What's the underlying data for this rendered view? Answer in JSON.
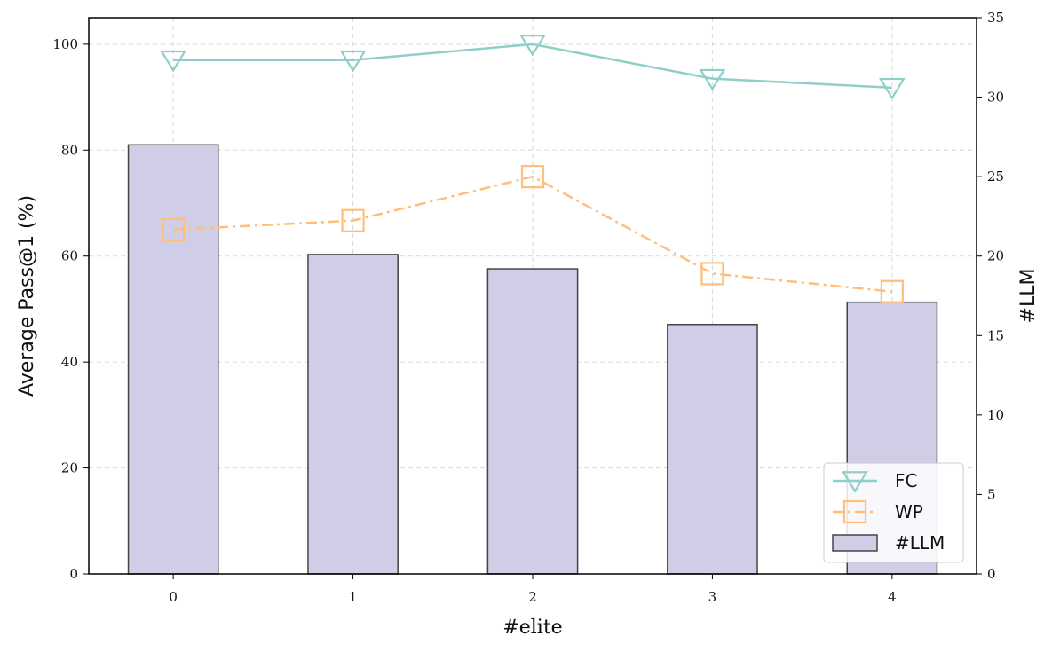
{
  "chart_data": {
    "type": "bar+line",
    "xlabel": "#elite",
    "ylabel_left": "Average Pass@1 (%)",
    "ylabel_right": "#LLM",
    "categories": [
      "0",
      "1",
      "2",
      "3",
      "4"
    ],
    "y_left_lim": [
      0,
      105
    ],
    "y_left_ticks": [
      "0",
      "20",
      "40",
      "60",
      "80",
      "100"
    ],
    "y_right_lim": [
      0,
      35
    ],
    "y_right_ticks": [
      "0",
      "5",
      "10",
      "15",
      "20",
      "25",
      "30",
      "35"
    ],
    "grid": true,
    "legend_position": "bottom-right",
    "series": [
      {
        "name": "FC",
        "axis": "left",
        "kind": "line",
        "marker": "triangle-down",
        "color": "#8ecfc9",
        "values": [
          97.0,
          97.0,
          100.0,
          93.5,
          91.8
        ]
      },
      {
        "name": "WP",
        "axis": "left",
        "kind": "line",
        "marker": "square",
        "linestyle": "dash-dot",
        "color": "#ffbe7a",
        "values": [
          65.0,
          66.7,
          75.0,
          56.7,
          53.3
        ]
      },
      {
        "name": "#LLM",
        "axis": "right",
        "kind": "bar",
        "color": "#d0cde6",
        "values": [
          27.0,
          20.1,
          19.2,
          15.7,
          17.1
        ]
      }
    ]
  }
}
